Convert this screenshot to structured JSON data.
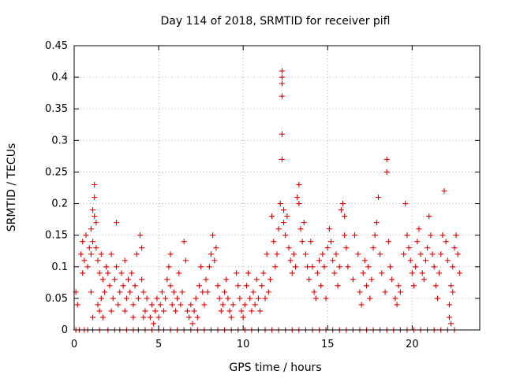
{
  "chart_data": {
    "type": "scatter",
    "title": "Day 114 of 2018, SRMTID for receiver pifl",
    "xlabel": "GPS time / hours",
    "ylabel": "SRMTID / TECUs",
    "xlim": [
      0,
      24
    ],
    "ylim": [
      0,
      0.45
    ],
    "x_ticks": [
      0,
      5,
      10,
      15,
      20
    ],
    "y_ticks": [
      0,
      0.05,
      0.1,
      0.15,
      0.2,
      0.25,
      0.3,
      0.35,
      0.4,
      0.45
    ],
    "x_tick_labels": [
      "0",
      "5",
      "10",
      "15",
      "20"
    ],
    "y_tick_labels": [
      "0",
      "0.05",
      "0.1",
      "0.15",
      "0.2",
      "0.25",
      "0.3",
      "0.35",
      "0.4",
      "0.45"
    ],
    "grid": true,
    "marker": "+",
    "color": "#e00000",
    "series": [
      {
        "name": "SRMTID",
        "points": [
          [
            0.1,
            0.06
          ],
          [
            0.2,
            0.04
          ],
          [
            0.4,
            0.12
          ],
          [
            0.5,
            0.14
          ],
          [
            0.5,
            0.09
          ],
          [
            0.6,
            0.11
          ],
          [
            0.7,
            0.15
          ],
          [
            0.8,
            0.1
          ],
          [
            0.9,
            0.13
          ],
          [
            1.0,
            0.16
          ],
          [
            1.0,
            0.12
          ],
          [
            1.1,
            0.19
          ],
          [
            1.1,
            0.14
          ],
          [
            1.2,
            0.21
          ],
          [
            1.2,
            0.23
          ],
          [
            1.2,
            0.18
          ],
          [
            1.3,
            0.17
          ],
          [
            1.3,
            0.13
          ],
          [
            1.4,
            0.11
          ],
          [
            1.5,
            0.09
          ],
          [
            1.6,
            0.12
          ],
          [
            1.6,
            0.05
          ],
          [
            1.7,
            0.08
          ],
          [
            1.8,
            0.06
          ],
          [
            1.9,
            0.1
          ],
          [
            1.0,
            0.06
          ],
          [
            1.1,
            0.02
          ],
          [
            1.4,
            0.04
          ],
          [
            1.5,
            0.03
          ],
          [
            1.7,
            0.02
          ],
          [
            2.0,
            0.09
          ],
          [
            2.1,
            0.07
          ],
          [
            2.2,
            0.12
          ],
          [
            2.3,
            0.05
          ],
          [
            2.4,
            0.08
          ],
          [
            2.5,
            0.1
          ],
          [
            2.5,
            0.17
          ],
          [
            2.6,
            0.04
          ],
          [
            2.7,
            0.06
          ],
          [
            2.8,
            0.09
          ],
          [
            2.9,
            0.07
          ],
          [
            3.0,
            0.11
          ],
          [
            3.1,
            0.05
          ],
          [
            3.2,
            0.08
          ],
          [
            3.3,
            0.06
          ],
          [
            3.4,
            0.09
          ],
          [
            3.5,
            0.04
          ],
          [
            3.6,
            0.07
          ],
          [
            3.7,
            0.12
          ],
          [
            3.8,
            0.05
          ],
          [
            3.9,
            0.15
          ],
          [
            4.0,
            0.13
          ],
          [
            4.0,
            0.08
          ],
          [
            4.1,
            0.06
          ],
          [
            4.2,
            0.03
          ],
          [
            4.3,
            0.05
          ],
          [
            3.0,
            0.03
          ],
          [
            3.5,
            0.02
          ],
          [
            4.1,
            0.02
          ],
          [
            2.2,
            0.03
          ],
          [
            4.5,
            0.02
          ],
          [
            4.6,
            0.04
          ],
          [
            4.7,
            0.01
          ],
          [
            4.8,
            0.03
          ],
          [
            4.9,
            0.05
          ],
          [
            5.0,
            0.02
          ],
          [
            5.1,
            0.04
          ],
          [
            5.2,
            0.06
          ],
          [
            5.3,
            0.03
          ],
          [
            5.4,
            0.05
          ],
          [
            5.5,
            0.08
          ],
          [
            5.6,
            0.1
          ],
          [
            5.7,
            0.12
          ],
          [
            5.7,
            0.07
          ],
          [
            5.8,
            0.04
          ],
          [
            5.9,
            0.06
          ],
          [
            6.0,
            0.03
          ],
          [
            6.1,
            0.05
          ],
          [
            6.2,
            0.09
          ],
          [
            6.3,
            0.04
          ],
          [
            6.4,
            0.06
          ],
          [
            6.5,
            0.14
          ],
          [
            6.6,
            0.11
          ],
          [
            6.7,
            0.03
          ],
          [
            6.8,
            0.02
          ],
          [
            6.9,
            0.04
          ],
          [
            7.0,
            0.01
          ],
          [
            7.1,
            0.03
          ],
          [
            7.2,
            0.05
          ],
          [
            7.3,
            0.02
          ],
          [
            7.4,
            0.07
          ],
          [
            7.5,
            0.1
          ],
          [
            7.6,
            0.06
          ],
          [
            7.7,
            0.04
          ],
          [
            7.8,
            0.08
          ],
          [
            7.9,
            0.06
          ],
          [
            8.0,
            0.1
          ],
          [
            8.1,
            0.12
          ],
          [
            8.2,
            0.15
          ],
          [
            8.3,
            0.11
          ],
          [
            8.4,
            0.13
          ],
          [
            8.5,
            0.07
          ],
          [
            8.6,
            0.05
          ],
          [
            8.7,
            0.03
          ],
          [
            8.8,
            0.04
          ],
          [
            8.9,
            0.06
          ],
          [
            9.0,
            0.08
          ],
          [
            9.1,
            0.05
          ],
          [
            9.2,
            0.03
          ],
          [
            9.3,
            0.02
          ],
          [
            9.4,
            0.04
          ],
          [
            9.6,
            0.09
          ],
          [
            9.7,
            0.07
          ],
          [
            9.8,
            0.05
          ],
          [
            9.9,
            0.03
          ],
          [
            10.0,
            0.02
          ],
          [
            10.1,
            0.04
          ],
          [
            10.2,
            0.07
          ],
          [
            10.3,
            0.09
          ],
          [
            10.4,
            0.05
          ],
          [
            10.5,
            0.03
          ],
          [
            10.6,
            0.06
          ],
          [
            10.7,
            0.04
          ],
          [
            10.8,
            0.08
          ],
          [
            10.9,
            0.05
          ],
          [
            11.0,
            0.03
          ],
          [
            11.1,
            0.07
          ],
          [
            11.2,
            0.09
          ],
          [
            11.3,
            0.05
          ],
          [
            11.4,
            0.12
          ],
          [
            11.5,
            0.06
          ],
          [
            11.6,
            0.08
          ],
          [
            11.7,
            0.18
          ],
          [
            11.8,
            0.14
          ],
          [
            11.9,
            0.1
          ],
          [
            12.0,
            0.12
          ],
          [
            12.1,
            0.16
          ],
          [
            12.2,
            0.2
          ],
          [
            12.3,
            0.41
          ],
          [
            12.3,
            0.4
          ],
          [
            12.3,
            0.39
          ],
          [
            12.3,
            0.37
          ],
          [
            12.3,
            0.31
          ],
          [
            12.3,
            0.27
          ],
          [
            12.4,
            0.19
          ],
          [
            12.4,
            0.17
          ],
          [
            12.5,
            0.15
          ],
          [
            12.6,
            0.18
          ],
          [
            12.7,
            0.13
          ],
          [
            12.8,
            0.11
          ],
          [
            12.9,
            0.09
          ],
          [
            13.0,
            0.12
          ],
          [
            13.1,
            0.1
          ],
          [
            13.2,
            0.21
          ],
          [
            13.3,
            0.23
          ],
          [
            13.3,
            0.2
          ],
          [
            13.4,
            0.16
          ],
          [
            13.5,
            0.14
          ],
          [
            13.6,
            0.17
          ],
          [
            13.7,
            0.12
          ],
          [
            13.8,
            0.1
          ],
          [
            13.9,
            0.08
          ],
          [
            14.0,
            0.14
          ],
          [
            14.1,
            0.1
          ],
          [
            14.2,
            0.06
          ],
          [
            14.3,
            0.05
          ],
          [
            14.4,
            0.09
          ],
          [
            14.5,
            0.11
          ],
          [
            14.6,
            0.07
          ],
          [
            14.7,
            0.12
          ],
          [
            14.8,
            0.1
          ],
          [
            14.9,
            0.05
          ],
          [
            15.0,
            0.13
          ],
          [
            15.1,
            0.16
          ],
          [
            15.2,
            0.14
          ],
          [
            15.3,
            0.11
          ],
          [
            15.4,
            0.09
          ],
          [
            15.5,
            0.12
          ],
          [
            15.6,
            0.07
          ],
          [
            15.7,
            0.1
          ],
          [
            15.8,
            0.19
          ],
          [
            15.9,
            0.2
          ],
          [
            16.0,
            0.18
          ],
          [
            16.0,
            0.15
          ],
          [
            16.1,
            0.13
          ],
          [
            16.2,
            0.1
          ],
          [
            16.5,
            0.08
          ],
          [
            16.6,
            0.15
          ],
          [
            16.8,
            0.12
          ],
          [
            16.9,
            0.06
          ],
          [
            17.0,
            0.04
          ],
          [
            17.1,
            0.09
          ],
          [
            17.2,
            0.11
          ],
          [
            17.3,
            0.07
          ],
          [
            17.4,
            0.1
          ],
          [
            17.5,
            0.05
          ],
          [
            17.6,
            0.08
          ],
          [
            17.7,
            0.13
          ],
          [
            17.8,
            0.15
          ],
          [
            17.9,
            0.17
          ],
          [
            18.0,
            0.21
          ],
          [
            18.1,
            0.12
          ],
          [
            18.2,
            0.09
          ],
          [
            18.4,
            0.06
          ],
          [
            18.5,
            0.27
          ],
          [
            18.5,
            0.25
          ],
          [
            18.6,
            0.14
          ],
          [
            18.7,
            0.1
          ],
          [
            18.8,
            0.08
          ],
          [
            19.0,
            0.05
          ],
          [
            19.1,
            0.04
          ],
          [
            19.2,
            0.07
          ],
          [
            19.3,
            0.06
          ],
          [
            19.5,
            0.12
          ],
          [
            19.6,
            0.2
          ],
          [
            19.7,
            0.15
          ],
          [
            19.8,
            0.13
          ],
          [
            19.9,
            0.11
          ],
          [
            20.0,
            0.09
          ],
          [
            20.1,
            0.07
          ],
          [
            20.2,
            0.1
          ],
          [
            20.3,
            0.14
          ],
          [
            20.4,
            0.16
          ],
          [
            20.5,
            0.12
          ],
          [
            20.6,
            0.09
          ],
          [
            20.7,
            0.08
          ],
          [
            20.8,
            0.11
          ],
          [
            20.9,
            0.13
          ],
          [
            21.0,
            0.18
          ],
          [
            21.1,
            0.15
          ],
          [
            21.2,
            0.12
          ],
          [
            21.3,
            0.1
          ],
          [
            21.4,
            0.07
          ],
          [
            21.5,
            0.05
          ],
          [
            21.6,
            0.09
          ],
          [
            21.7,
            0.12
          ],
          [
            21.8,
            0.15
          ],
          [
            21.9,
            0.22
          ],
          [
            22.0,
            0.14
          ],
          [
            22.1,
            0.11
          ],
          [
            22.2,
            0.04
          ],
          [
            22.2,
            0.02
          ],
          [
            22.3,
            0.07
          ],
          [
            22.4,
            0.1
          ],
          [
            22.5,
            0.13
          ],
          [
            22.6,
            0.15
          ],
          [
            22.7,
            0.12
          ],
          [
            22.8,
            0.09
          ],
          [
            22.4,
            0.06
          ],
          [
            22.3,
            0.01
          ]
        ]
      }
    ],
    "zero_markers_x": [
      0.1,
      0.3,
      0.6,
      0.8,
      1.1,
      1.5,
      2.0,
      2.4,
      2.7,
      3.1,
      3.5,
      3.8,
      4.2,
      4.6,
      5.0,
      5.3,
      5.7,
      6.1,
      6.5,
      6.9,
      7.3,
      7.7,
      8.1,
      8.5,
      8.9,
      9.3,
      9.7,
      10.1,
      10.5,
      10.9,
      11.3,
      11.7,
      12.1,
      12.5,
      12.9,
      13.3,
      13.7,
      14.1,
      14.5,
      14.9,
      15.3,
      15.7,
      16.1,
      16.5,
      16.9,
      17.3,
      17.7,
      18.1,
      18.5,
      18.9,
      19.3,
      19.7,
      20.1,
      20.5,
      20.9,
      21.3,
      21.7,
      22.1,
      22.5
    ]
  }
}
